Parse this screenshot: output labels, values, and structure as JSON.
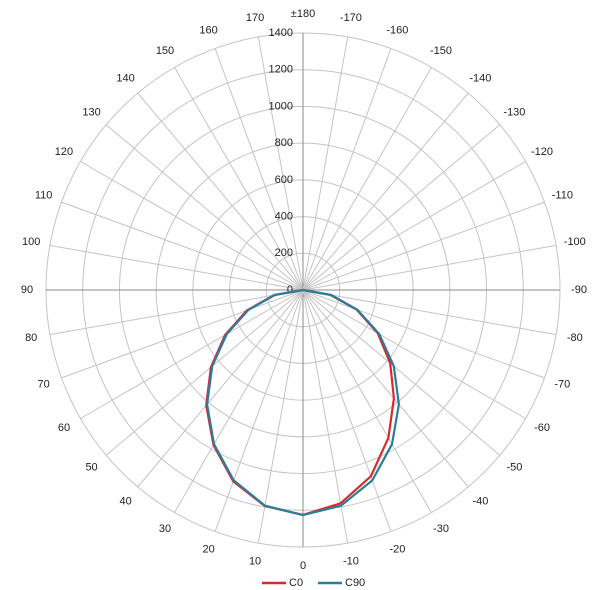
{
  "chart_data": {
    "type": "polar",
    "rlim": [
      0,
      1400
    ],
    "rticks": [
      0,
      200,
      400,
      600,
      800,
      1000,
      1200,
      1400
    ],
    "angle_ticks": [
      0,
      10,
      20,
      30,
      40,
      50,
      60,
      70,
      80,
      90,
      100,
      110,
      120,
      130,
      140,
      150,
      160,
      170,
      {
        "value": 180,
        "label": "±180"
      },
      -170,
      -160,
      -150,
      -140,
      -130,
      -120,
      -110,
      -100,
      -90,
      -80,
      -70,
      -60,
      -50,
      -40,
      -30,
      -20,
      -10
    ],
    "grid": true,
    "legend": "bottom",
    "series": [
      {
        "name": "C0",
        "color": "#d92b2b",
        "x": [
          -90,
          -80,
          -70,
          -60,
          -50,
          -40,
          -30,
          -20,
          -10,
          0,
          10,
          20,
          30,
          40,
          50,
          60,
          70,
          80,
          90
        ],
        "values": [
          0,
          150,
          310,
          470,
          620,
          770,
          930,
          1080,
          1180,
          1225,
          1195,
          1110,
          975,
          820,
          655,
          490,
          325,
          160,
          0
        ]
      },
      {
        "name": "C90",
        "color": "#2c7c9c",
        "x": [
          -90,
          -80,
          -70,
          -60,
          -50,
          -40,
          -30,
          -20,
          -10,
          0,
          10,
          20,
          30,
          40,
          50,
          60,
          70,
          80,
          90
        ],
        "values": [
          0,
          156,
          316,
          479,
          646,
          813,
          970,
          1104,
          1193,
          1226,
          1193,
          1104,
          970,
          813,
          646,
          479,
          316,
          156,
          0
        ]
      }
    ]
  }
}
